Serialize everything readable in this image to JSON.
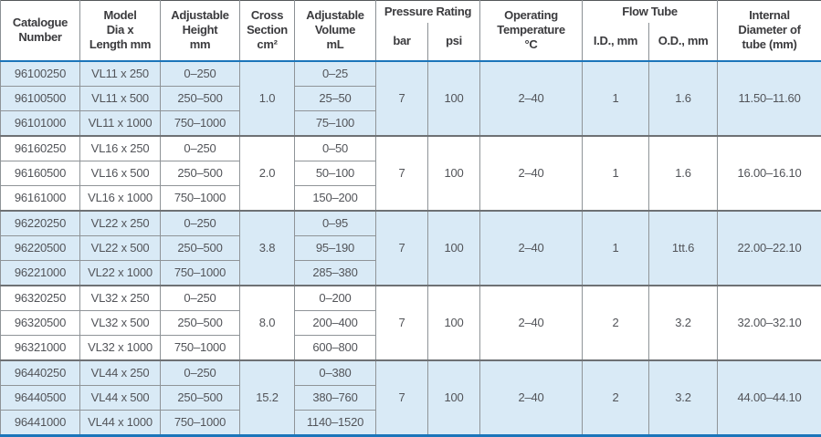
{
  "table": {
    "header": {
      "catalogue": "Catalogue\nNumber",
      "model": "Model\nDia x\nLength mm",
      "height": "Adjustable\nHeight\nmm",
      "cross": "Cross\nSection\ncm²",
      "volume": "Adjustable\nVolume\nmL",
      "pressure_group": "Pressure Rating",
      "bar": "bar",
      "psi": "psi",
      "temp": "Operating\nTemperature\n°C",
      "flow_group": "Flow Tube",
      "id_mm": "I.D., mm",
      "od_mm": "O.D., mm",
      "internal": "Internal\nDiameter of\ntube (mm)"
    },
    "groups": [
      {
        "shaded": true,
        "rows": [
          {
            "catalogue": "96100250",
            "model": "VL11 x 250",
            "height": "0–250",
            "volume": "0–25"
          },
          {
            "catalogue": "96100500",
            "model": "VL11 x 500",
            "height": "250–500",
            "volume": "25–50"
          },
          {
            "catalogue": "96101000",
            "model": "VL11 x 1000",
            "height": "750–1000",
            "volume": "75–100"
          }
        ],
        "cross_section": "1.0",
        "pressure_bar": "7",
        "pressure_psi": "100",
        "operating_temp": "2–40",
        "flow_id": "1",
        "flow_od": "1.6",
        "internal_diameter": "11.50–11.60"
      },
      {
        "shaded": false,
        "rows": [
          {
            "catalogue": "96160250",
            "model": "VL16 x 250",
            "height": "0–250",
            "volume": "0–50"
          },
          {
            "catalogue": "96160500",
            "model": "VL16 x 500",
            "height": "250–500",
            "volume": "50–100"
          },
          {
            "catalogue": "96161000",
            "model": "VL16 x 1000",
            "height": "750–1000",
            "volume": "150–200"
          }
        ],
        "cross_section": "2.0",
        "pressure_bar": "7",
        "pressure_psi": "100",
        "operating_temp": "2–40",
        "flow_id": "1",
        "flow_od": "1.6",
        "internal_diameter": "16.00–16.10"
      },
      {
        "shaded": true,
        "rows": [
          {
            "catalogue": "96220250",
            "model": "VL22 x 250",
            "height": "0–250",
            "volume": "0–95"
          },
          {
            "catalogue": "96220500",
            "model": "VL22 x 500",
            "height": "250–500",
            "volume": "95–190"
          },
          {
            "catalogue": "96221000",
            "model": "VL22 x 1000",
            "height": "750–1000",
            "volume": "285–380"
          }
        ],
        "cross_section": "3.8",
        "pressure_bar": "7",
        "pressure_psi": "100",
        "operating_temp": "2–40",
        "flow_id": "1",
        "flow_od": "1tt.6",
        "internal_diameter": "22.00–22.10"
      },
      {
        "shaded": false,
        "rows": [
          {
            "catalogue": "96320250",
            "model": "VL32 x 250",
            "height": "0–250",
            "volume": "0–200"
          },
          {
            "catalogue": "96320500",
            "model": "VL32 x 500",
            "height": "250–500",
            "volume": "200–400"
          },
          {
            "catalogue": "96321000",
            "model": "VL32 x 1000",
            "height": "750–1000",
            "volume": "600–800"
          }
        ],
        "cross_section": "8.0",
        "pressure_bar": "7",
        "pressure_psi": "100",
        "operating_temp": "2–40",
        "flow_id": "2",
        "flow_od": "3.2",
        "internal_diameter": "32.00–32.10"
      },
      {
        "shaded": true,
        "rows": [
          {
            "catalogue": "96440250",
            "model": "VL44 x 250",
            "height": "0–250",
            "volume": "0–380"
          },
          {
            "catalogue": "96440500",
            "model": "VL44 x 500",
            "height": "250–500",
            "volume": "380–760"
          },
          {
            "catalogue": "96441000",
            "model": "VL44 x 1000",
            "height": "750–1000",
            "volume": "1140–1520"
          }
        ],
        "cross_section": "15.2",
        "pressure_bar": "7",
        "pressure_psi": "100",
        "operating_temp": "2–40",
        "flow_id": "2",
        "flow_od": "3.2",
        "internal_diameter": "44.00–44.10"
      }
    ],
    "colors": {
      "accent_blue_rule": "#1c75ba",
      "shaded_row_bg": "#d9eaf6",
      "grid_line": "#8f9498",
      "header_text": "#3b3b3e",
      "body_text": "#525459"
    }
  }
}
